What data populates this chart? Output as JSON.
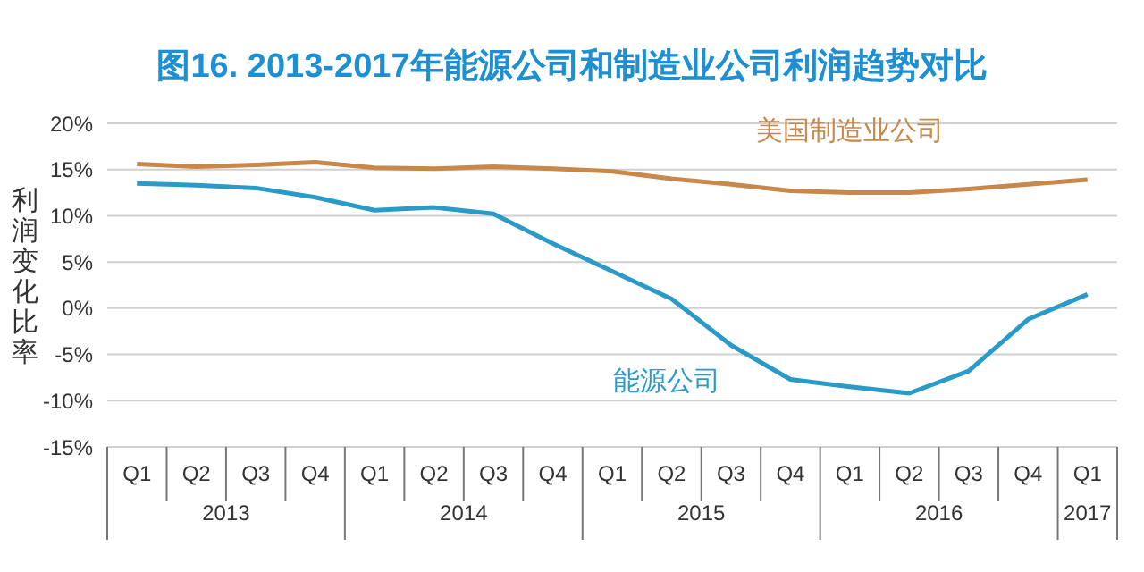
{
  "chart_data": {
    "type": "line",
    "title": "图16. 2013-2017年能源公司和制造业公司利润趋势对比",
    "ylabel": "利润变化比率",
    "categories": [
      "Q1",
      "Q2",
      "Q3",
      "Q4",
      "Q1",
      "Q2",
      "Q3",
      "Q4",
      "Q1",
      "Q2",
      "Q3",
      "Q4",
      "Q1",
      "Q2",
      "Q3",
      "Q4",
      "Q1"
    ],
    "annotations": [
      "2013",
      "2014",
      "2015",
      "2016",
      "2017"
    ],
    "series": [
      {
        "name": "美国制造业公司",
        "color": "#c8884a",
        "values": [
          15.6,
          15.3,
          15.5,
          15.8,
          15.2,
          15.1,
          15.3,
          15.1,
          14.8,
          14.0,
          13.4,
          12.7,
          12.5,
          12.5,
          12.9,
          13.4,
          13.9
        ]
      },
      {
        "name": "能源公司",
        "color": "#2a9bc8",
        "values": [
          13.5,
          13.3,
          13.0,
          12.0,
          10.6,
          10.9,
          10.2,
          7.0,
          4.0,
          1.0,
          -4.0,
          -7.7,
          -8.5,
          -9.2,
          -6.8,
          -1.2,
          1.5
        ]
      }
    ],
    "ylim": [
      -15,
      20
    ],
    "yticks": [
      {
        "value": -15,
        "label": "-15%"
      },
      {
        "value": -10,
        "label": "-10%"
      },
      {
        "value": -5,
        "label": "-5%"
      },
      {
        "value": 0,
        "label": "0%"
      },
      {
        "value": 5,
        "label": "5%"
      },
      {
        "value": 10,
        "label": "10%"
      },
      {
        "value": 15,
        "label": "15%"
      },
      {
        "value": 20,
        "label": "20%"
      }
    ],
    "grid": "y",
    "marker": "none",
    "line_style": "solid"
  }
}
